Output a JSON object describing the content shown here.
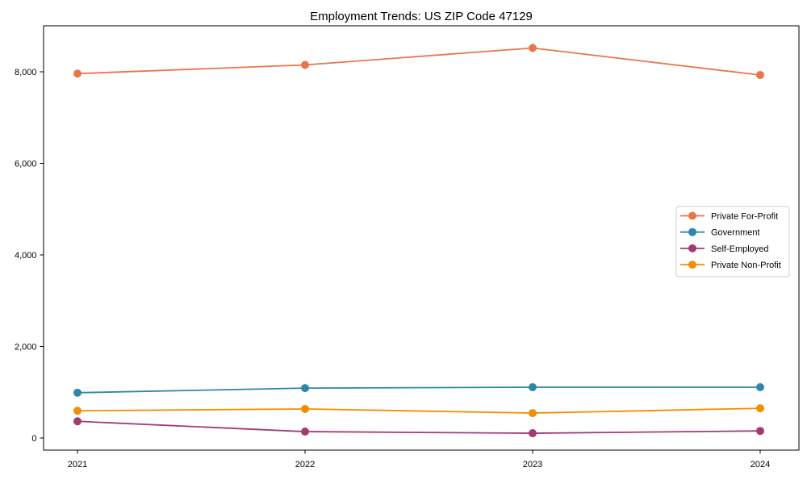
{
  "chart_data": {
    "type": "line",
    "title": "Employment Trends: US ZIP Code 47129",
    "xlabel": "",
    "ylabel": "",
    "categories": [
      "2021",
      "2022",
      "2023",
      "2024"
    ],
    "series": [
      {
        "name": "Private For-Profit",
        "color": "#E8764B",
        "values": [
          7960,
          8150,
          8520,
          7930
        ]
      },
      {
        "name": "Government",
        "color": "#2E86AB",
        "values": [
          990,
          1090,
          1110,
          1110
        ]
      },
      {
        "name": "Self-Employed",
        "color": "#A23B72",
        "values": [
          365,
          140,
          105,
          155
        ]
      },
      {
        "name": "Private Non-Profit",
        "color": "#F18F01",
        "values": [
          595,
          635,
          545,
          650
        ]
      }
    ],
    "yticks": [
      0,
      2000,
      4000,
      6000,
      8000
    ],
    "ytick_labels": [
      "0",
      "2,000",
      "4,000",
      "6,000",
      "8,000"
    ],
    "ylim": [
      -270,
      9000
    ],
    "grid": false,
    "legend_position": "center right",
    "marker": "circle",
    "axis_color": "#000000",
    "legend_border_color": "#cccccc",
    "background_color": "#ffffff"
  }
}
